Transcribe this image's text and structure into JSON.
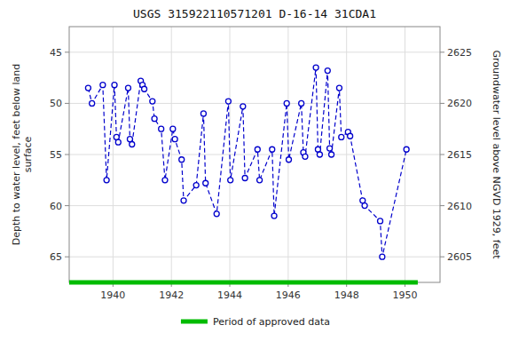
{
  "chart_data": {
    "type": "line",
    "title": "USGS 315922110571201 D-16-14 31CDA1",
    "y_label": "Depth to water level, feet below land\nsurface",
    "y2_label": "Groundwater level above NGVD 1929, feet",
    "xlim": [
      1938.5,
      1951.2
    ],
    "xticks": [
      1940,
      1942,
      1944,
      1946,
      1948,
      1950
    ],
    "ylim": [
      67.5,
      42.5
    ],
    "yticks": [
      45,
      50,
      55,
      60,
      65
    ],
    "y2lim": [
      2602.5,
      2627.5
    ],
    "y2ticks": [
      2605,
      2610,
      2615,
      2620,
      2625
    ],
    "grid": true,
    "legend": "bottom",
    "x": [
      1939.15,
      1939.28,
      1939.65,
      1939.78,
      1940.05,
      1940.12,
      1940.18,
      1940.52,
      1940.58,
      1940.65,
      1940.95,
      1941.01,
      1941.07,
      1941.35,
      1941.42,
      1941.65,
      1941.78,
      1942.05,
      1942.12,
      1942.35,
      1942.42,
      1942.85,
      1943.1,
      1943.17,
      1943.55,
      1943.95,
      1944.02,
      1944.45,
      1944.52,
      1944.95,
      1945.02,
      1945.45,
      1945.52,
      1945.95,
      1946.02,
      1946.45,
      1946.52,
      1946.58,
      1946.95,
      1947.02,
      1947.08,
      1947.35,
      1947.42,
      1947.48,
      1947.75,
      1947.82,
      1948.05,
      1948.12,
      1948.55,
      1948.62,
      1949.15,
      1949.22,
      1950.05
    ],
    "series": [
      {
        "color": "#0000cc",
        "marker": "circle",
        "line_style": "dashed",
        "values": [
          48.5,
          50.0,
          48.2,
          57.5,
          48.2,
          53.3,
          53.8,
          48.5,
          53.5,
          54.0,
          47.8,
          48.2,
          48.6,
          49.8,
          51.5,
          52.5,
          57.5,
          52.5,
          53.5,
          55.5,
          59.5,
          58.0,
          51.0,
          57.8,
          60.8,
          49.8,
          57.5,
          50.3,
          57.3,
          54.5,
          57.5,
          54.5,
          61.0,
          50.0,
          55.5,
          50.0,
          54.8,
          55.2,
          46.5,
          54.5,
          55.0,
          46.8,
          54.4,
          55.0,
          48.5,
          53.3,
          52.8,
          53.2,
          59.5,
          60.0,
          61.5,
          65.0,
          54.5
        ]
      },
      {
        "name": "Period of approved data",
        "type": "span",
        "color": "#00bb00",
        "x": [
          1938.5,
          1950.438
        ]
      }
    ]
  }
}
